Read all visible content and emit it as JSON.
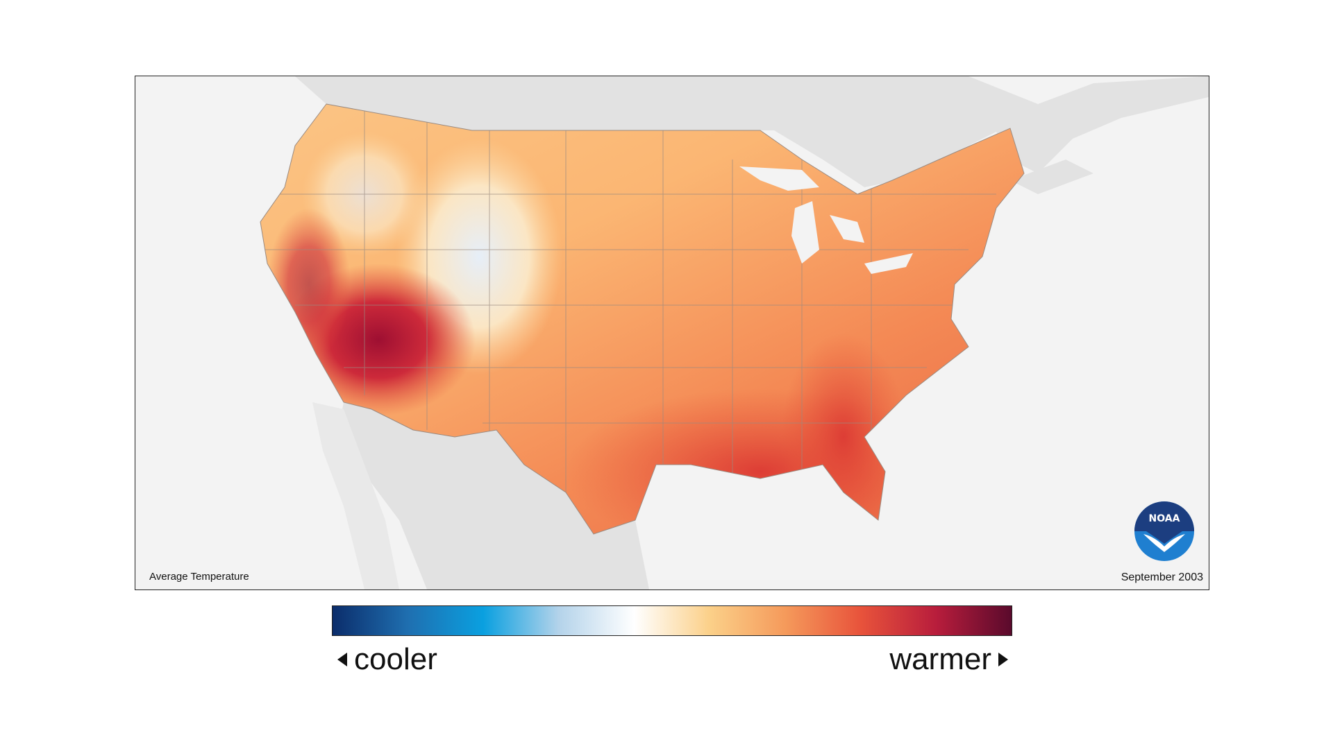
{
  "map": {
    "caption_left": "Average Temperature",
    "caption_right": "September 2003",
    "logo_text": "NOAA"
  },
  "legend": {
    "cooler_label": "cooler",
    "warmer_label": "warmer",
    "gradient_colors": [
      "#0b2d6b",
      "#1f6fb0",
      "#0aa0e0",
      "#b4d3ea",
      "#ffffff",
      "#fbd089",
      "#f59a5b",
      "#e8533b",
      "#b81d3c",
      "#5a0a2c"
    ]
  },
  "colors": {
    "land_other": "#e2e2e2",
    "water": "#f3f3f3",
    "state_borders": "#9a8a80",
    "noaa_dark": "#1c3e80",
    "noaa_light": "#1f7fd0"
  }
}
